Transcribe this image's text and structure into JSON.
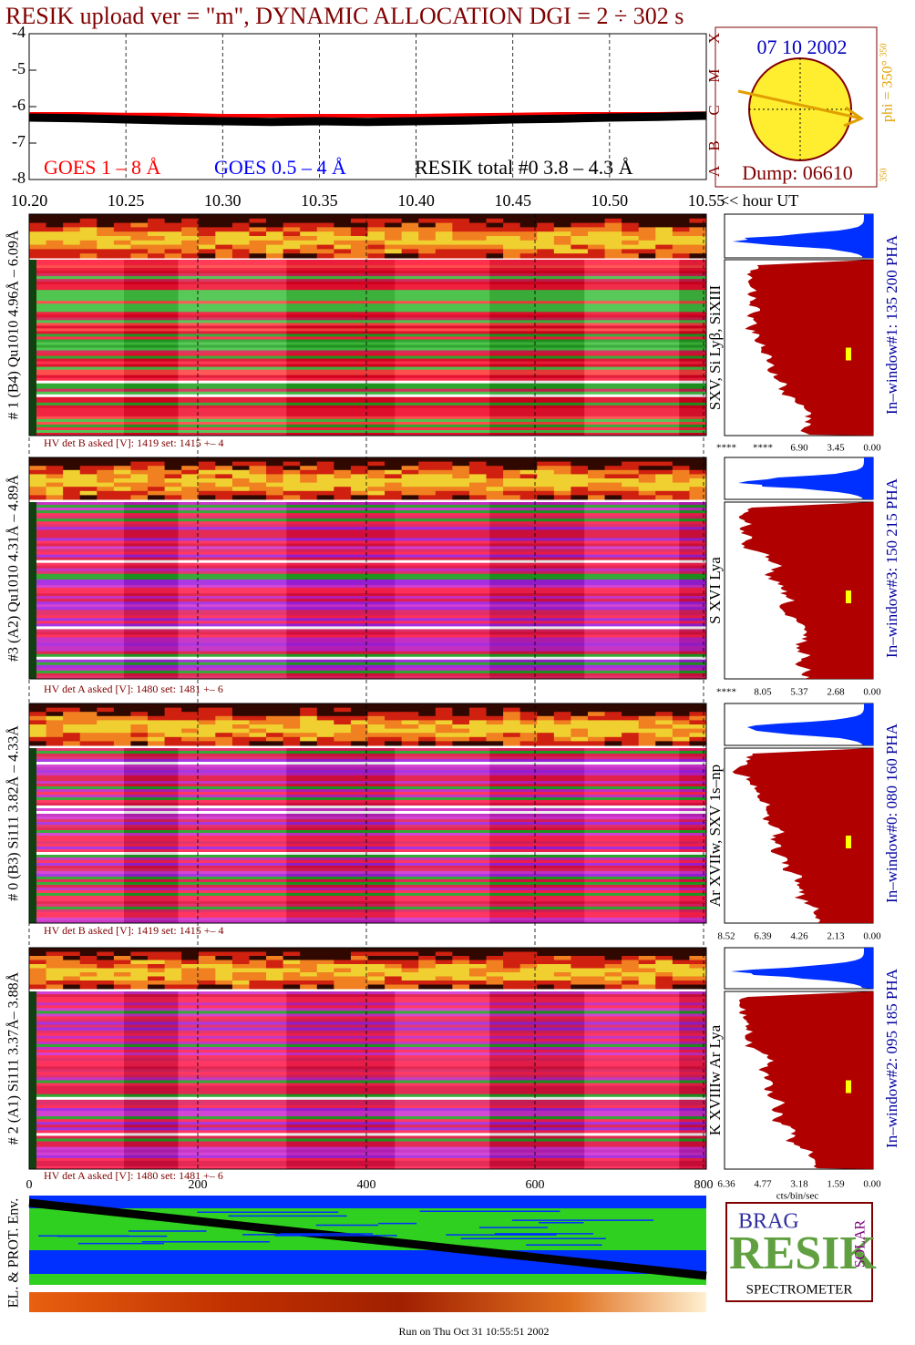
{
  "title": "RESIK upload ver = \"m\", DYNAMIC ALLOCATION  DGI =   2 ÷ 302 s",
  "lightcurve": {
    "type": "line",
    "x": [
      10.2,
      10.225,
      10.25,
      10.275,
      10.3,
      10.325,
      10.35,
      10.375,
      10.4,
      10.425,
      10.45,
      10.475,
      10.5,
      10.525,
      10.55
    ],
    "series": [
      {
        "name": "GOES 1 – 8 Å",
        "color": "#ff0000",
        "values": [
          -6.2,
          -6.2,
          -6.22,
          -6.22,
          -6.25,
          -6.25,
          -6.25,
          -6.25,
          -6.25,
          -6.23,
          -6.22,
          -6.2,
          -6.2,
          -6.2,
          -6.18
        ]
      },
      {
        "name": "GOES 0.5 – 4 Å",
        "color": "#0000ff",
        "values": [
          null,
          null,
          null,
          null,
          null,
          null,
          null,
          null,
          null,
          null,
          null,
          null,
          null,
          null,
          null
        ]
      },
      {
        "name": "RESIK total #0  3.8 – 4.3 Å",
        "color": "#000000",
        "values": [
          -6.3,
          -6.32,
          -6.35,
          -6.38,
          -6.4,
          -6.42,
          -6.4,
          -6.42,
          -6.4,
          -6.38,
          -6.35,
          -6.33,
          -6.3,
          -6.28,
          -6.25
        ]
      }
    ],
    "ylim": [
      -8,
      -4
    ],
    "yticks": [
      -4,
      -5,
      -6,
      -7,
      -8
    ],
    "xlim": [
      10.2,
      10.55
    ],
    "xticks": [
      {
        "value": 10.2,
        "label": "10.20"
      },
      {
        "value": 10.25,
        "label": "10.25"
      },
      {
        "value": 10.3,
        "label": "10.30"
      },
      {
        "value": 10.35,
        "label": "10.35"
      },
      {
        "value": 10.4,
        "label": "10.40"
      },
      {
        "value": 10.45,
        "label": "10.45"
      },
      {
        "value": 10.5,
        "label": "10.50"
      },
      {
        "value": 10.55,
        "label": "10.55"
      }
    ],
    "x_label": "<< hour UT",
    "class_labels": [
      "X",
      "M",
      "C",
      "B",
      "A"
    ]
  },
  "sun": {
    "date": "07 10 2002",
    "dump": "Dump: 06610",
    "phi": "phi = 350°",
    "scale_top": "350",
    "scale_bottom": "350"
  },
  "panels": [
    {
      "left_label": "# 1 (B4) Qu1010 4.96Å – 6.09Å",
      "line_label": "SXV, Si Lyβ, SiXIII",
      "window_label": "In–window#1:  135 200 PHA",
      "hv_label": "HV det B asked [V]:  1419 set:  1415  +–    4",
      "hist_ticks": [
        "****",
        "****",
        "6.90",
        "3.45",
        "0.00"
      ]
    },
    {
      "left_label": "#3 (A2) Qu1010  4.31Å – 4.89Å",
      "line_label": "S XVI Lya",
      "window_label": "In–window#3:  150 215 PHA",
      "hv_label": "HV det A asked [V]:  1480 set:  1481  +–    6",
      "hist_ticks": [
        "****",
        "8.05",
        "5.37",
        "2.68",
        "0.00"
      ]
    },
    {
      "left_label": "# 0 (B3) Si111  3.82Å – 4.33Å",
      "line_label": "Ar XVIIw,  SXV 1s–np",
      "window_label": "In–window#0:  080 160 PHA",
      "hv_label": "HV det B asked [V]:  1419 set:  1415  +–    4",
      "hist_ticks": [
        "8.52",
        "6.39",
        "4.26",
        "2.13",
        "0.00"
      ]
    },
    {
      "left_label": "# 2 (A1) Si111  3.37Å– 3.88Å",
      "line_label": "K XVIIIw  Ar Lya",
      "window_label": "In–window#2:  095 185 PHA",
      "hv_label": "HV det A asked [V]:  1480 set:  1481  +–    6",
      "hist_ticks": [
        "6.36",
        "4.77",
        "3.18",
        "1.59",
        "0.00"
      ]
    }
  ],
  "hist_unit": "cts/bin/sec",
  "bottom_axis": {
    "xlim": [
      0,
      800
    ],
    "xticks": [
      0,
      200,
      400,
      600,
      800
    ]
  },
  "env_label": "EL. & PROT. Env.",
  "logo": {
    "top": "BRAG",
    "main": "RESIK",
    "side": "SOLAR",
    "bottom": "SPECTROMETER"
  },
  "footer": "Run on Thu Oct 31 10:55:51 2002"
}
